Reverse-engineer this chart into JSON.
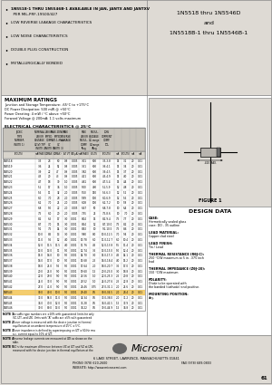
{
  "title_right": "1N5518 thru 1N5546D\nand\n1N5518B-1 thru 1N5546B-1",
  "bullets": [
    "1N5518-1 THRU 1N5546B-1 AVAILABLE IN JAN, JANTX AND JANTXV\n  PER MIL-PRF-19500/427",
    "LOW REVERSE LEAKAGE CHARACTERISTICS",
    "LOW NOISE CHARACTERISTICS",
    "DOUBLE PLUG CONSTRUCTION",
    "METALLURGICALLY BONDED"
  ],
  "max_ratings_title": "MAXIMUM RATINGS",
  "max_ratings_lines": [
    "Junction and Storage Temperature: -65°C to +175°C",
    "DC Power Dissipation: 500 mW @ +50°C",
    "Power Derating: 4 mW / °C above +50°C",
    "Forward Voltage @ 200mA: 1.1 volts maximum"
  ],
  "elec_title": "ELECTRICAL CHARACTERISTICS @ 25°C",
  "col_headers_line1": [
    "JEDEC",
    "NOMINAL",
    "ZENER",
    "MAX ZENER",
    "MAXIMUM REVERSE",
    "",
    "MAX ZENER",
    "REGULATION",
    "LOW"
  ],
  "col_headers_line2": [
    "TYPE",
    "ZENER",
    "IMPED.",
    "IMPED.",
    "LEAKAGE CURRENT",
    "",
    "REGUL.",
    "VOLTAGE",
    "CURRENT"
  ],
  "figure1_label": "FIGURE 1",
  "design_data_title": "DESIGN DATA",
  "design_data_items": [
    [
      "CASE:",
      "Hermetically sealed glass\ncase: DO - 35 outline"
    ],
    [
      "LEAD MATERIAL:",
      "Copper clad steel"
    ],
    [
      "LEAD FINISH:",
      "Tin / Lead"
    ],
    [
      "THERMAL RESISTANCE (RθJ-C):",
      "250 °C/W maximum at 5 in. .375 inch\nlead"
    ],
    [
      "THERMAL IMPEDANCE (ZθJ-20):",
      "150 °C/W maximum"
    ],
    [
      "POLARITY:",
      "Diode to be operated with\nthe banded (cathode) end positive."
    ],
    [
      "MOUNTING POSITION:",
      "Any."
    ]
  ],
  "footer_logo": "Microsemi",
  "footer_address": "6 LAKE STREET, LAWRENCE, MASSACHUSETTS 01841",
  "footer_phone": "PHONE (978) 620-2600",
  "footer_fax": "FAX (978) 689-0803",
  "footer_website": "WEBSITE: http://www.microsemi.com",
  "footer_page": "61",
  "bg_color": "#dedad4",
  "white_bg": "#ffffff",
  "header_bg": "#c8c4bc",
  "subheader_bg": "#d8d4cc",
  "highlight_color": "#f0b830",
  "table_rows": [
    [
      "1N5518",
      "3.3",
      "28",
      "60",
      "0.8",
      "0.005",
      "3.01",
      "600",
      "3.3-3.8",
      "15",
      "3.1",
      "20",
      "0.21"
    ],
    [
      "1N5519",
      "3.6",
      "24",
      "52",
      "0.8",
      "0.005",
      "3.51",
      "600",
      "3.6-4.1",
      "15",
      "3.4",
      "20",
      "0.21"
    ],
    [
      "1N5520",
      "3.9",
      "22",
      "47",
      "0.9",
      "0.005",
      "3.82",
      "600",
      "3.9-4.5",
      "15",
      "3.7",
      "20",
      "0.21"
    ],
    [
      "1N5521",
      "4.3",
      "20",
      "43",
      "0.9",
      "0.005",
      "4.21",
      "600",
      "4.3-4.9",
      "15",
      "4.0",
      "20",
      "0.21"
    ],
    [
      "1N5522",
      "4.7",
      "18",
      "39",
      "1.0",
      "0.005",
      "4.61",
      "600",
      "4.7-5.4",
      "15",
      "4.4",
      "20",
      "0.21"
    ],
    [
      "1N5523",
      "5.1",
      "17",
      "36",
      "1.0",
      "0.005",
      "5.00",
      "400",
      "5.1-5.9",
      "12",
      "4.8",
      "20",
      "0.21"
    ],
    [
      "1N5524",
      "5.6",
      "11",
      "32",
      "2.0",
      "0.005",
      "5.50",
      "150",
      "5.6-6.3",
      "12",
      "5.2",
      "20",
      "0.21"
    ],
    [
      "1N5525",
      "6.0",
      "7.0",
      "28",
      "2.0",
      "0.005",
      "5.89",
      "100",
      "6.0-6.9",
      "12",
      "5.6",
      "20",
      "0.21"
    ],
    [
      "1N5526",
      "6.2",
      "7.0",
      "25",
      "2.0",
      "0.005",
      "6.08",
      "100",
      "6.2-7.2",
      "10",
      "5.8",
      "20",
      "0.21"
    ],
    [
      "1N5527",
      "6.8",
      "5.0",
      "22",
      "2.0",
      "0.005",
      "6.67",
      "50",
      "6.8-7.8",
      "10",
      "6.4",
      "20",
      "0.21"
    ],
    [
      "1N5528",
      "7.5",
      "6.0",
      "20",
      "2.0",
      "0.005",
      "7.35",
      "25",
      "7.5-8.6",
      "10",
      "7.0",
      "20",
      "0.21"
    ],
    [
      "1N5529",
      "8.2",
      "6.5",
      "17",
      "3.0",
      "0.001",
      "8.04",
      "15",
      "8.2-9.4",
      "7.5",
      "7.7",
      "20",
      "0.21"
    ],
    [
      "1N5530",
      "8.7",
      "7.0",
      "15",
      "3.0",
      "0.001",
      "8.54",
      "12",
      "8.7-10.0",
      "7.5",
      "8.2",
      "20",
      "0.21"
    ],
    [
      "1N5531",
      "9.1",
      "7.5",
      "14",
      "3.0",
      "0.001",
      "8.92",
      "10",
      "9.1-10.5",
      "7.5",
      "8.6",
      "20",
      "0.21"
    ],
    [
      "1N5532",
      "10.0",
      "8.5",
      "13",
      "3.0",
      "0.001",
      "9.80",
      "8.0",
      "10.0-11.5",
      "7.0",
      "9.4",
      "20",
      "0.21"
    ],
    [
      "1N5533",
      "11.0",
      "9.5",
      "12",
      "4.0",
      "0.001",
      "10.78",
      "6.0",
      "11.0-12.7",
      "6.0",
      "10.4",
      "20",
      "0.21"
    ],
    [
      "1N5534",
      "12.0",
      "11.5",
      "11.5",
      "4.0",
      "0.001",
      "11.76",
      "4.5",
      "12.0-13.8",
      "5.5",
      "11.4",
      "20",
      "0.21"
    ],
    [
      "1N5535",
      "13.0",
      "13.0",
      "11",
      "5.0",
      "0.001",
      "12.74",
      "3.5",
      "13.0-15.0",
      "5.0",
      "12.4",
      "20",
      "0.21"
    ],
    [
      "1N5536",
      "15.0",
      "16.0",
      "10",
      "5.0",
      "0.001",
      "14.70",
      "3.0",
      "15.0-17.3",
      "4.5",
      "14.1",
      "20",
      "0.21"
    ],
    [
      "1N5537",
      "16.0",
      "17.0",
      "10",
      "5.0",
      "0.001",
      "15.68",
      "2.5",
      "16.0-18.4",
      "4.0",
      "15.2",
      "20",
      "0.21"
    ],
    [
      "1N5538",
      "18.0",
      "21.0",
      "9.5",
      "5.0",
      "0.001",
      "17.64",
      "2.0",
      "18.0-20.7",
      "3.5",
      "17.0",
      "20",
      "0.21"
    ],
    [
      "1N5539",
      "20.0",
      "25.0",
      "9.0",
      "5.0",
      "0.001",
      "19.60",
      "1.5",
      "20.0-23.0",
      "3.0",
      "18.8",
      "20",
      "0.21"
    ],
    [
      "1N5540",
      "22.0",
      "29.0",
      "9.0",
      "5.0",
      "0.001",
      "21.56",
      "1.0",
      "22.0-25.3",
      "2.5",
      "20.8",
      "20",
      "0.21"
    ],
    [
      "1N5541",
      "24.0",
      "33.0",
      "9.0",
      "5.0",
      "0.001",
      "23.52",
      "1.0",
      "24.0-27.6",
      "2.5",
      "22.8",
      "20",
      "0.21"
    ],
    [
      "1N5542",
      "27.0",
      "41.0",
      "9.0",
      "5.0",
      "0.001",
      "26.46",
      "0.75",
      "27.0-31.1",
      "2.0",
      "25.6",
      "20",
      "0.21"
    ],
    [
      "1N5543",
      "30.0",
      "49.0",
      "10.0",
      "5.0",
      "0.001",
      "29.40",
      "0.5",
      "30.0-34.5",
      "2.0",
      "28.4",
      "20",
      "0.21"
    ],
    [
      "1N5544",
      "33.0",
      "58.0",
      "11.0",
      "5.0",
      "0.001",
      "32.34",
      "0.5",
      "33.0-38.0",
      "2.0",
      "31.2",
      "20",
      "0.21"
    ],
    [
      "1N5545",
      "36.0",
      "70.0",
      "12.0",
      "5.0",
      "0.001",
      "35.28",
      "0.5",
      "36.0-41.5",
      "1.5",
      "33.9",
      "20",
      "0.21"
    ],
    [
      "1N5546",
      "39.0",
      "80.0",
      "13.0",
      "5.0",
      "0.001",
      "38.22",
      "0.5",
      "39.0-44.9",
      "1.5",
      "36.8",
      "20",
      "0.21"
    ]
  ],
  "highlight_row_idx": 25,
  "notes_text": [
    [
      "NOTE 1",
      "No suffix type numbers are ±10% with guaranteed limits for only VZ, IZT, and IZK. Units with \"A\" suffix are ±5% with guaranteed limits for VZ, IZT, and IZK. Units with guaranteed limits for all the parameters are indicated by a \"B\" suffix for ±20% units, \"C\" suffix for ±10% and \"D\" suffix for ±5%."
    ],
    [
      "NOTE 2",
      "Zener voltage is measured with the device junction in thermal equilibrium at an ambient temperature of 25°C ± 5°C."
    ],
    [
      "NOTE 3",
      "Zener impedance is defined by superimposing on IZT a 60-Hz rms a.c. current equal to 10% of IZT."
    ],
    [
      "NOTE 4",
      "Reverse leakage currents are measured at IZK as shown on the table."
    ],
    [
      "NOTE 5",
      "VZ is the maximum difference between VZ at IZT and VZ at IZK, measured with the device junction in thermal equilibrium at the ambient temperature of +25°C ±5°C."
    ]
  ]
}
